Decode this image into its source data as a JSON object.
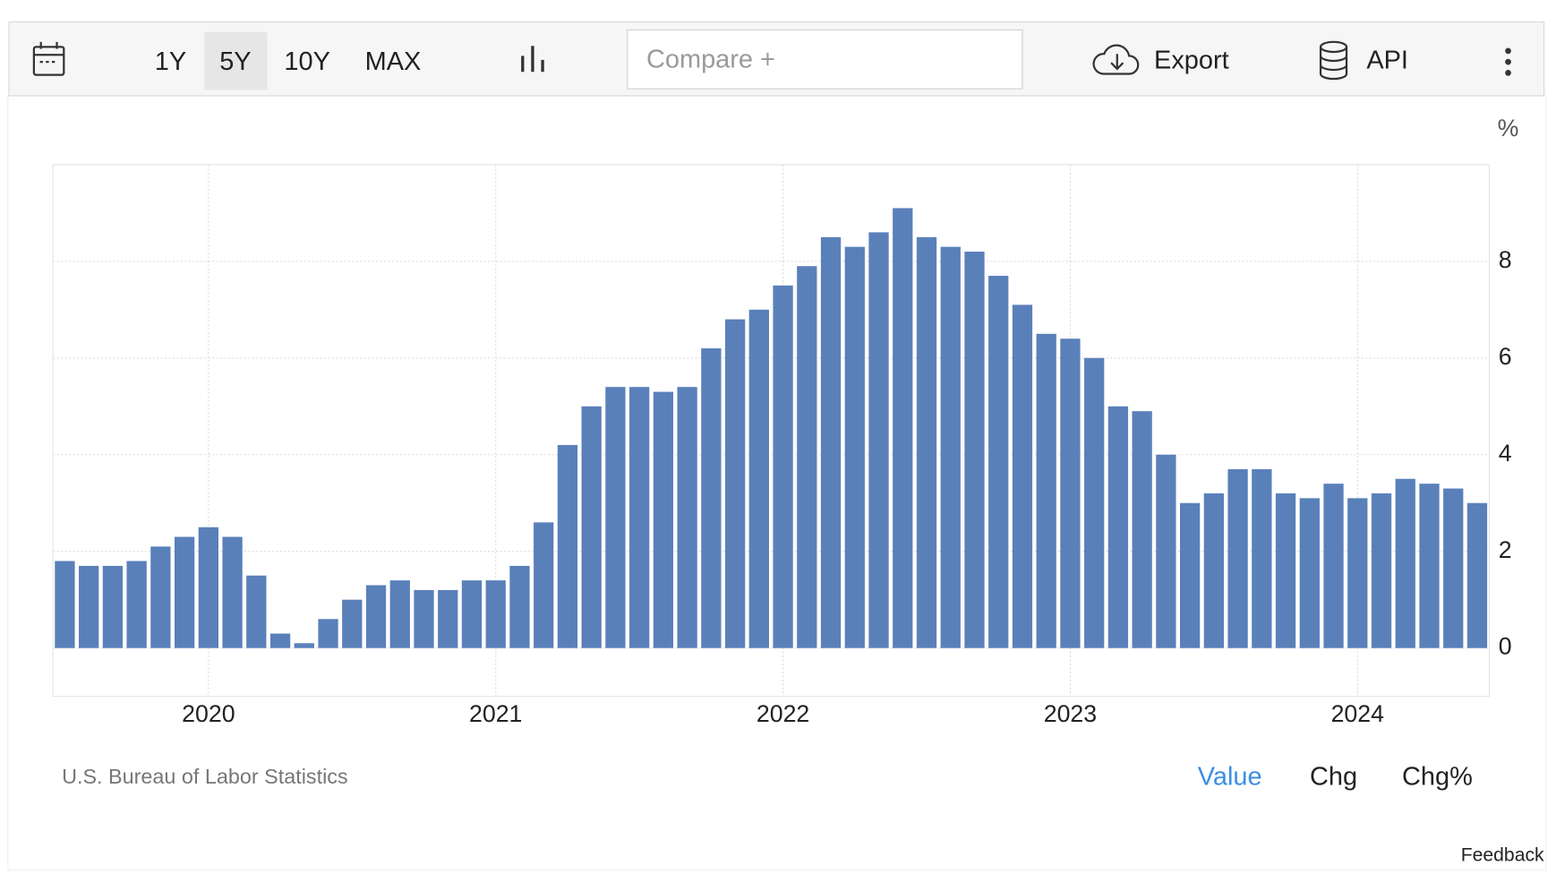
{
  "toolbar": {
    "ranges": [
      "1Y",
      "5Y",
      "10Y",
      "MAX"
    ],
    "compare": "Compare +",
    "export": "Export",
    "api": "API"
  },
  "chart_data": {
    "type": "bar",
    "unit": "%",
    "categories": [
      null,
      null,
      null,
      null,
      null,
      null,
      "2020",
      null,
      null,
      null,
      null,
      null,
      null,
      null,
      null,
      null,
      null,
      null,
      "2021",
      null,
      null,
      null,
      null,
      null,
      null,
      null,
      null,
      null,
      null,
      null,
      "2022",
      null,
      null,
      null,
      null,
      null,
      null,
      null,
      null,
      null,
      null,
      null,
      "2023",
      null,
      null,
      null,
      null,
      null,
      null,
      null,
      null,
      null,
      null,
      null,
      "2024",
      null,
      null,
      null,
      null,
      null
    ],
    "values": [
      1.8,
      1.7,
      1.7,
      1.8,
      2.1,
      2.3,
      2.5,
      2.3,
      1.5,
      0.3,
      0.1,
      0.6,
      1.0,
      1.3,
      1.4,
      1.2,
      1.2,
      1.4,
      1.4,
      1.7,
      2.6,
      4.2,
      5.0,
      5.4,
      5.4,
      5.3,
      5.4,
      6.2,
      6.8,
      7.0,
      7.5,
      7.9,
      8.5,
      8.3,
      8.6,
      9.1,
      8.5,
      8.3,
      8.2,
      7.7,
      7.1,
      6.5,
      6.4,
      6.0,
      5.0,
      4.9,
      4.0,
      3.0,
      3.2,
      3.7,
      3.7,
      3.2,
      3.1,
      3.4,
      3.1,
      3.2,
      3.5,
      3.4,
      3.3,
      3.0
    ],
    "color": "#5a80ba",
    "ylim": [
      -1,
      10
    ],
    "yticks": [
      0,
      2,
      4,
      6,
      8
    ],
    "grid": true,
    "source": "U.S. Bureau of Labor Statistics"
  },
  "footer": {
    "tabs": [
      "Value",
      "Chg",
      "Chg%"
    ],
    "active_tab": 0,
    "feedback": "Feedback"
  }
}
